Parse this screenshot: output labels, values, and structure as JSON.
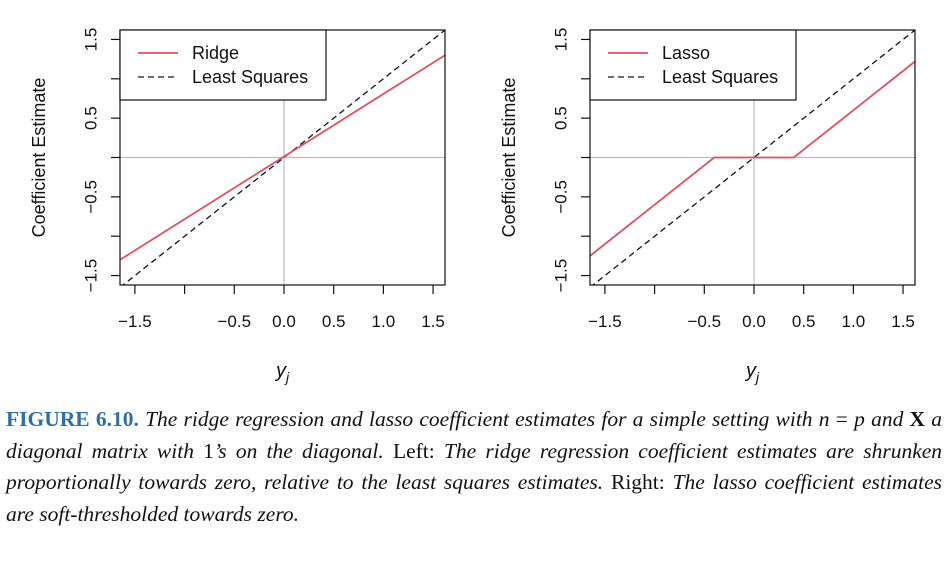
{
  "chart_data": [
    {
      "type": "line",
      "panel": "left",
      "xlabel": "y_j",
      "ylabel": "Coefficient Estimate",
      "xlim": [
        -1.65,
        1.62
      ],
      "ylim": [
        -1.62,
        1.62
      ],
      "xticks": [
        "-1.5",
        "-0.5",
        "0.0",
        "0.5",
        "1.0",
        "1.5"
      ],
      "xtick_values": [
        -1.5,
        -1.0,
        -0.5,
        0.0,
        0.5,
        1.0,
        1.5
      ],
      "xtick_labels_shown": [
        -1.5,
        -0.5,
        0.0,
        0.5,
        1.0,
        1.5
      ],
      "yticks": [
        "-1.5",
        "-0.5",
        "0.5",
        "1.5"
      ],
      "ytick_values": [
        -1.5,
        -1.0,
        -0.5,
        0.0,
        0.5,
        1.0,
        1.5
      ],
      "ytick_labels_shown": [
        -1.5,
        -0.5,
        0.5,
        1.5
      ],
      "grid": false,
      "reference_lines": {
        "x": 0,
        "y": 0,
        "color": "#bbbbbb"
      },
      "legend_position": "top-left",
      "series": [
        {
          "name": "Ridge",
          "color": "#e0505f",
          "style": "solid",
          "x": [
            -1.65,
            1.62
          ],
          "y": [
            -1.3,
            1.3
          ]
        },
        {
          "name": "Least Squares",
          "color": "#111111",
          "style": "dashed",
          "x": [
            -1.65,
            1.62
          ],
          "y": [
            -1.65,
            1.62
          ]
        }
      ]
    },
    {
      "type": "line",
      "panel": "right",
      "xlabel": "y_j",
      "ylabel": "Coefficient Estimate",
      "xlim": [
        -1.65,
        1.62
      ],
      "ylim": [
        -1.62,
        1.62
      ],
      "xticks": [
        "-1.5",
        "-0.5",
        "0.0",
        "0.5",
        "1.0",
        "1.5"
      ],
      "xtick_values": [
        -1.5,
        -1.0,
        -0.5,
        0.0,
        0.5,
        1.0,
        1.5
      ],
      "xtick_labels_shown": [
        -1.5,
        -0.5,
        0.0,
        0.5,
        1.0,
        1.5
      ],
      "yticks": [
        "-1.5",
        "-0.5",
        "0.5",
        "1.5"
      ],
      "ytick_values": [
        -1.5,
        -1.0,
        -0.5,
        0.0,
        0.5,
        1.0,
        1.5
      ],
      "ytick_labels_shown": [
        -1.5,
        -0.5,
        0.5,
        1.5
      ],
      "grid": false,
      "reference_lines": {
        "x": 0,
        "y": 0,
        "color": "#bbbbbb"
      },
      "legend_position": "top-left",
      "series": [
        {
          "name": "Lasso",
          "color": "#e0505f",
          "style": "solid",
          "x": [
            -1.65,
            -0.4,
            0.4,
            1.62
          ],
          "y": [
            -1.25,
            0.0,
            0.0,
            1.22
          ]
        },
        {
          "name": "Least Squares",
          "color": "#111111",
          "style": "dashed",
          "x": [
            -1.65,
            1.62
          ],
          "y": [
            -1.65,
            1.62
          ]
        }
      ]
    }
  ],
  "caption": {
    "figure_label": "FIGURE 6.10.",
    "part1": "The ridge regression and lasso coefficient estimates for a simple setting with",
    "math_n": "n",
    "math_eq": "=",
    "math_p": "p",
    "part2": "and",
    "math_X": "X",
    "part3": "a diagonal matrix with",
    "math_one": "1",
    "part4": "’s on the diagonal.",
    "left_label": "Left:",
    "part5": "The ridge regression coefficient estimates are shrunken proportionally towards zero, relative to the least squares estimates.",
    "right_label": "Right:",
    "part6": "The lasso coefficient estimates are soft-thresholded towards zero."
  }
}
